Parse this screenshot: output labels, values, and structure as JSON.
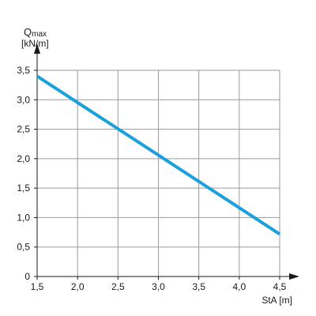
{
  "chart_data": {
    "type": "line",
    "ylabel_symbol": "Q",
    "ylabel_subscript": "max",
    "ylabel_unit": "[kN/m]",
    "xlabel": "StA [m]",
    "xlim": [
      1.5,
      4.5
    ],
    "ylim": [
      0,
      3.5
    ],
    "x_ticks": [
      "1,5",
      "2,0",
      "2,5",
      "3,0",
      "3,5",
      "4,0",
      "4,5"
    ],
    "y_ticks": [
      "0",
      "0,5",
      "1,0",
      "1,5",
      "2,0",
      "2,5",
      "3,0",
      "3,5"
    ],
    "grid": true,
    "series": [
      {
        "color": "#1aa0dc",
        "x": [
          1.5,
          4.5
        ],
        "y": [
          3.4,
          0.72
        ]
      }
    ]
  }
}
